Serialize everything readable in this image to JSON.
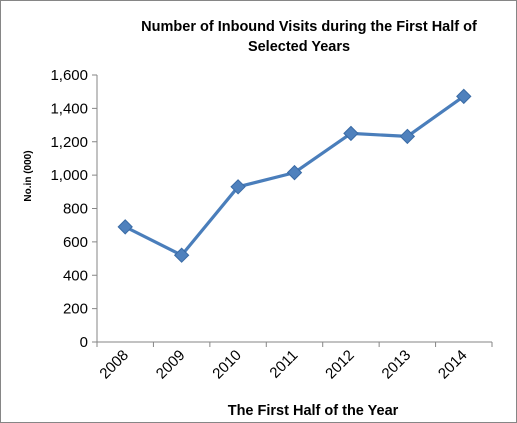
{
  "chart_data": {
    "type": "line",
    "title_lines": [
      "Number  of Inbound Visits during the First  Half of",
      "Selected Years"
    ],
    "xlabel": "The First Half of the Year",
    "ylabel": "No.in (000)",
    "categories": [
      "2008",
      "2009",
      "2010",
      "2011",
      "2012",
      "2013",
      "2014"
    ],
    "series": [
      {
        "values": [
          690,
          520,
          930,
          1015,
          1250,
          1232,
          1472
        ]
      }
    ],
    "yticks": [
      "0",
      "200",
      "400",
      "600",
      "800",
      "1,000",
      "1,200",
      "1,400",
      "1,600"
    ],
    "ylim": [
      0,
      1600
    ],
    "grid": false,
    "legend": "none",
    "marker": "diamond",
    "line_color": "#4A7EBB",
    "marker_color": "#4F81BD"
  }
}
